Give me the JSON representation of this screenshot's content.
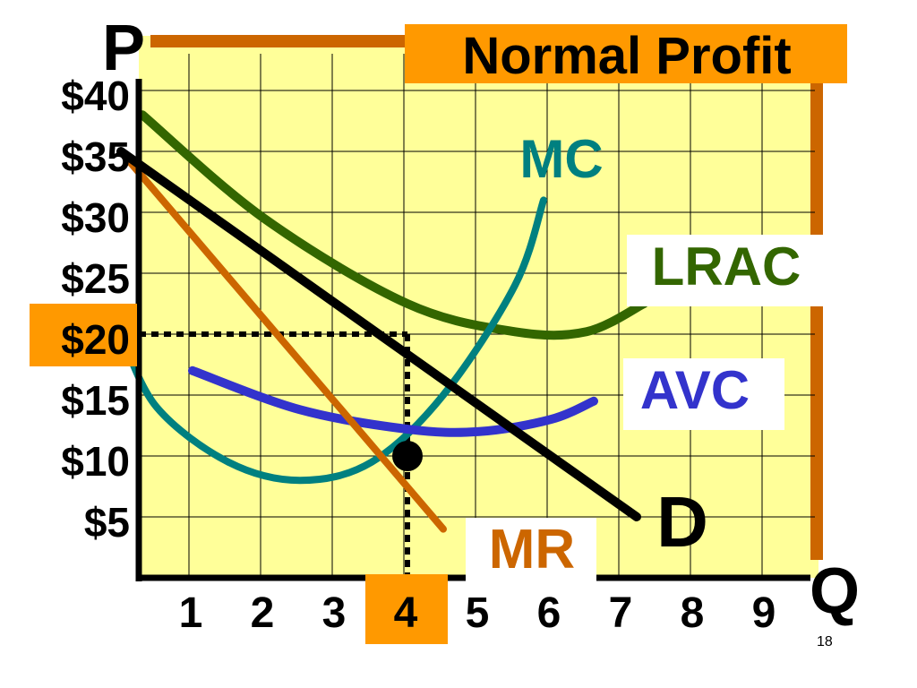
{
  "page_number": "18",
  "colors": {
    "plot_bg": "#ffff99",
    "frame": "#cc6600",
    "highlight": "#ff9900",
    "mc": "#008080",
    "lrac": "#336600",
    "avc": "#3333cc",
    "mr": "#cc6600",
    "demand": "#000000"
  },
  "chart_data": {
    "type": "line",
    "title": "Normal Profit",
    "xlabel": "Q",
    "ylabel": "P",
    "xlim": [
      0,
      9.5
    ],
    "ylim": [
      0,
      40
    ],
    "grid": true,
    "x_ticks": [
      {
        "value": 1,
        "label": "1"
      },
      {
        "value": 2,
        "label": "2"
      },
      {
        "value": 3,
        "label": "3"
      },
      {
        "value": 4,
        "label": "4",
        "highlighted": true
      },
      {
        "value": 5,
        "label": "5"
      },
      {
        "value": 6,
        "label": "6"
      },
      {
        "value": 7,
        "label": "7"
      },
      {
        "value": 8,
        "label": "8"
      },
      {
        "value": 9,
        "label": "9"
      }
    ],
    "y_ticks": [
      {
        "value": 5,
        "label": "$5"
      },
      {
        "value": 10,
        "label": "$10"
      },
      {
        "value": 15,
        "label": "$15"
      },
      {
        "value": 20,
        "label": "$20",
        "highlighted": true
      },
      {
        "value": 25,
        "label": "$25"
      },
      {
        "value": 30,
        "label": "$30"
      },
      {
        "value": 35,
        "label": "$35"
      },
      {
        "value": 40,
        "label": "$40"
      }
    ],
    "series": [
      {
        "name": "LRAC",
        "key": "lrac",
        "x": [
          0.3,
          2,
          4,
          5.5,
          6.5,
          7.3
        ],
        "y": [
          38,
          29.5,
          22.5,
          20.2,
          20.2,
          22.5
        ]
      },
      {
        "name": "MC",
        "key": "mc",
        "x": [
          0,
          0.5,
          1.5,
          2.5,
          3.5,
          4.5,
          5.5,
          5.9
        ],
        "y": [
          20,
          14,
          9.5,
          8,
          9.5,
          15,
          24,
          31
        ]
      },
      {
        "name": "AVC",
        "key": "avc",
        "x": [
          1,
          2.5,
          4,
          5,
          6,
          6.6
        ],
        "y": [
          17,
          13.8,
          12.2,
          12,
          13,
          14.5
        ]
      },
      {
        "name": "MR",
        "key": "mr",
        "x": [
          0,
          4.5
        ],
        "y": [
          35,
          4
        ]
      },
      {
        "name": "D",
        "key": "demand",
        "x": [
          0,
          7.2
        ],
        "y": [
          35,
          5
        ]
      }
    ],
    "reference_lines": {
      "price": 20,
      "quantity": 4
    },
    "highlight_point": {
      "x": 4,
      "y": 10
    }
  }
}
